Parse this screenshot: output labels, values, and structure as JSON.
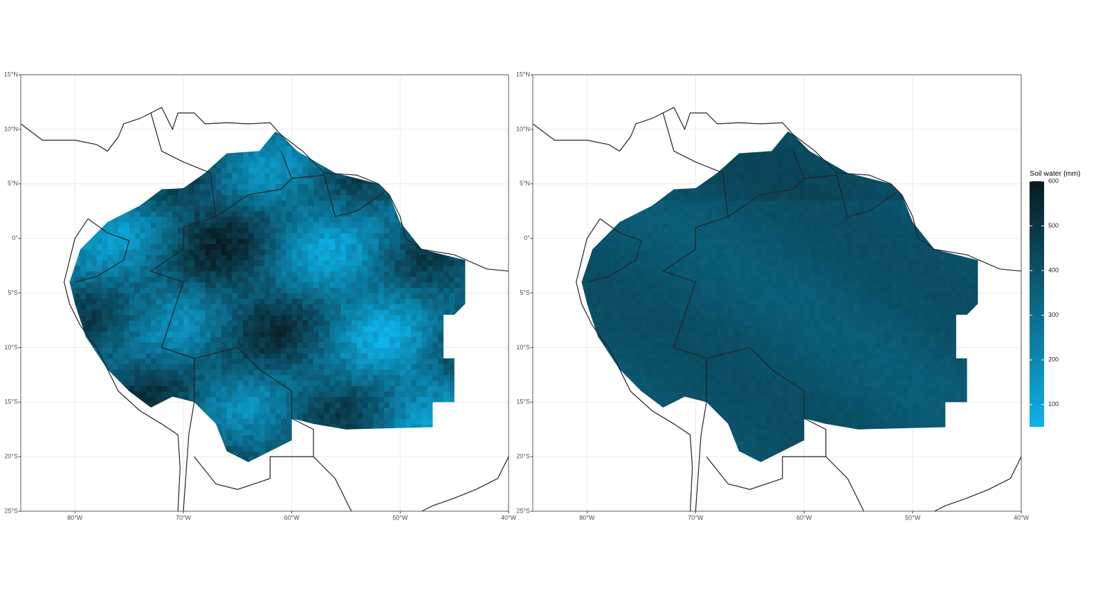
{
  "map": {
    "xlim": [
      -85,
      -40
    ],
    "ylim": [
      -25,
      15
    ],
    "xticks": [
      {
        "value": -80,
        "label": "80°W"
      },
      {
        "value": -70,
        "label": "70°W"
      },
      {
        "value": -60,
        "label": "60°W"
      },
      {
        "value": -50,
        "label": "50°W"
      },
      {
        "value": -40,
        "label": "40°W"
      }
    ],
    "yticks": [
      {
        "value": 15,
        "label": "15°N"
      },
      {
        "value": 10,
        "label": "10°N"
      },
      {
        "value": 5,
        "label": "5°N"
      },
      {
        "value": 0,
        "label": "0°"
      },
      {
        "value": -5,
        "label": "5°S"
      },
      {
        "value": -10,
        "label": "10°S"
      },
      {
        "value": -15,
        "label": "15°S"
      },
      {
        "value": -20,
        "label": "20°S"
      },
      {
        "value": -25,
        "label": "25°S"
      }
    ],
    "legend": {
      "title": "Soil water (mm)",
      "range": [
        50,
        600
      ],
      "ticks": [
        100,
        200,
        300,
        400,
        500,
        600
      ],
      "colors": [
        "#0cb2e8",
        "#0a1a20"
      ]
    }
  }
}
